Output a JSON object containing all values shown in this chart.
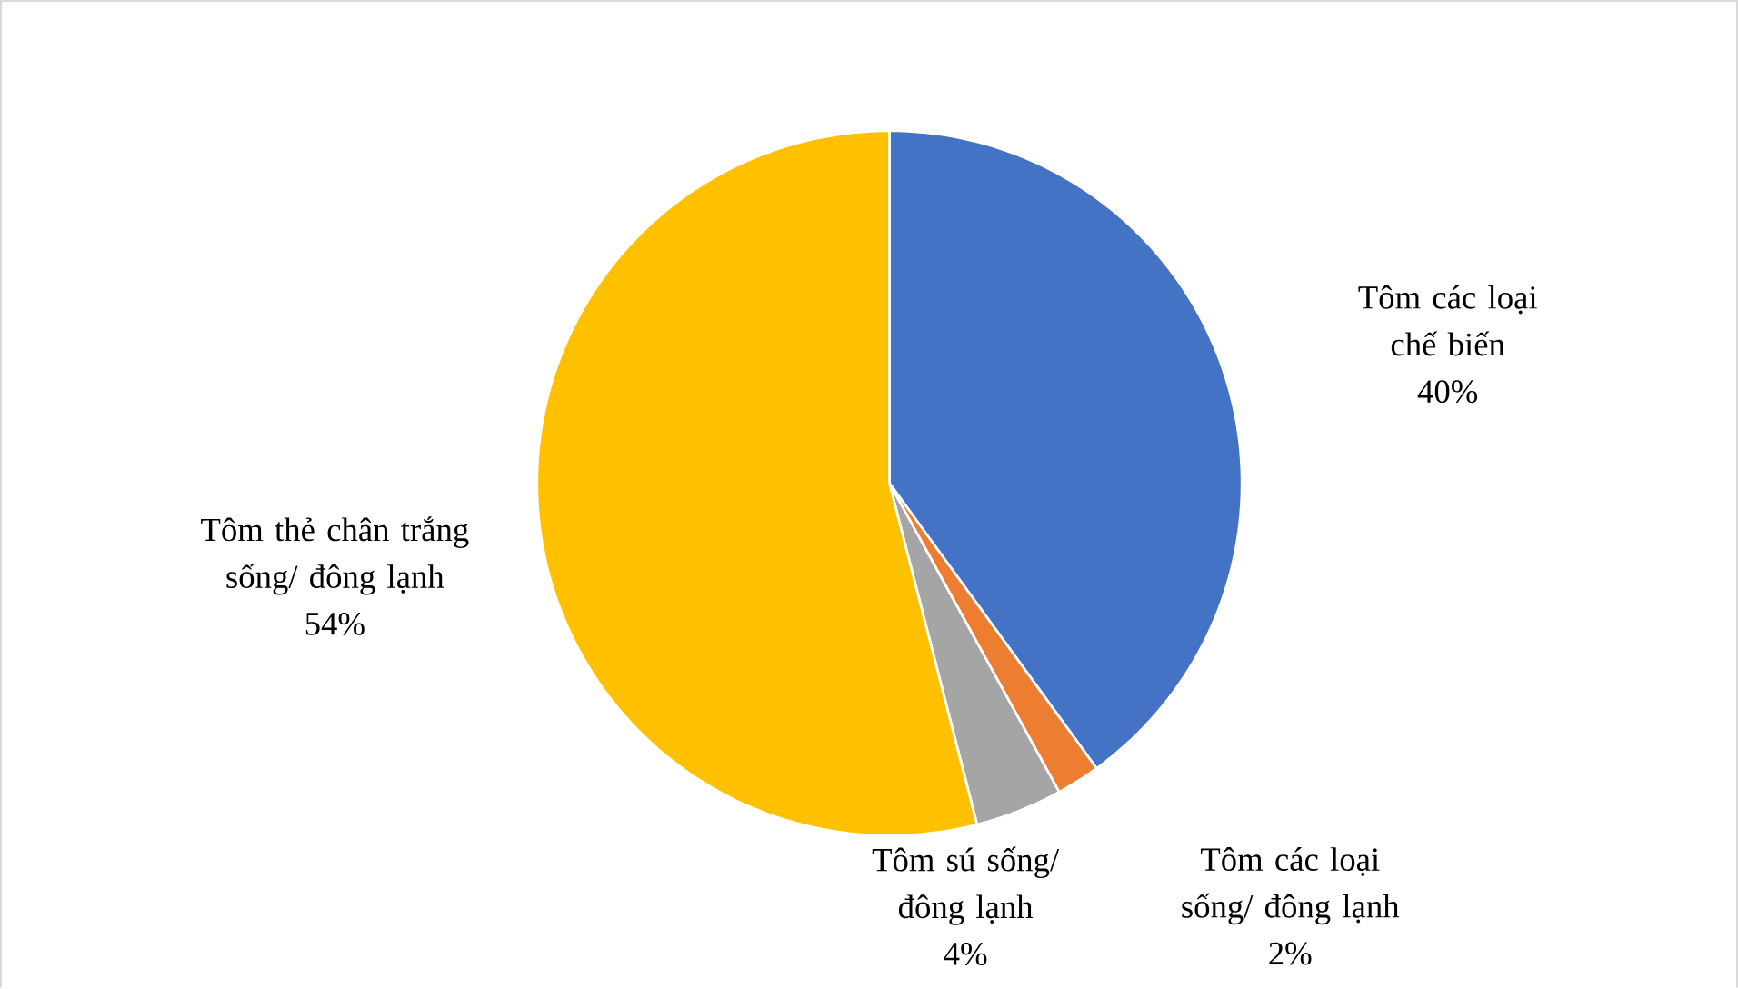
{
  "chart_data": {
    "type": "pie",
    "categories": [
      "Tôm các loại chế biến",
      "Tôm các loại sống/ đông lạnh",
      "Tôm sú sống/ đông lạnh",
      "Tôm thẻ chân trắng sống/ đông lạnh"
    ],
    "values": [
      40,
      2,
      4,
      54
    ],
    "value_labels": [
      "40%",
      "2%",
      "4%",
      "54%"
    ],
    "colors": [
      "#4472c4",
      "#ed7d31",
      "#a5a5a5",
      "#ffc000"
    ]
  }
}
